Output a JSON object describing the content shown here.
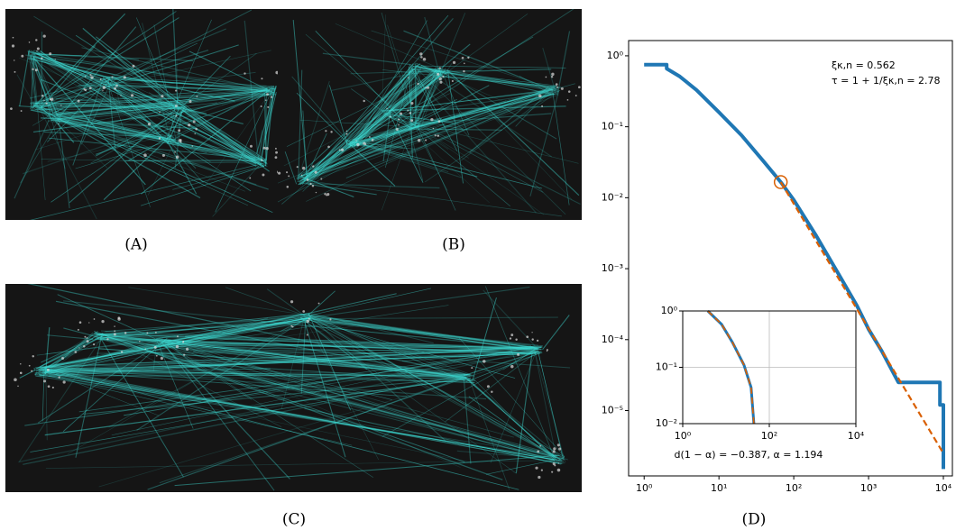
{
  "panel_labels": [
    "(A)",
    "(B)",
    "(C)",
    "(D)"
  ],
  "chart_data": {
    "type": "line",
    "xscale": "log",
    "yscale": "log",
    "xlim": [
      0.62,
      13200
    ],
    "ylim": [
      1.2e-06,
      1.64
    ],
    "xticks": [
      {
        "value": 1,
        "label": "10⁰"
      },
      {
        "value": 10,
        "label": "10¹"
      },
      {
        "value": 100,
        "label": "10²"
      },
      {
        "value": 1000,
        "label": "10³"
      },
      {
        "value": 10000,
        "label": "10⁴"
      }
    ],
    "yticks": [
      {
        "value": 1,
        "label": "10⁰"
      },
      {
        "value": 0.1,
        "label": "10⁻¹"
      },
      {
        "value": 0.01,
        "label": "10⁻²"
      },
      {
        "value": 0.001,
        "label": "10⁻³"
      },
      {
        "value": 0.0001,
        "label": "10⁻⁴"
      },
      {
        "value": 1e-05,
        "label": "10⁻⁵"
      }
    ],
    "annotations": [
      "ξκ,n = 0.562",
      "τ = 1 + 1/ξκ,n = 2.78"
    ],
    "series": [
      {
        "color": "#1f77b4",
        "style": "solid",
        "x": [
          1,
          2,
          2,
          3,
          5,
          10,
          20,
          40,
          67,
          100,
          200,
          400,
          700,
          1000,
          1500,
          2500,
          9000,
          9000,
          10000,
          10000
        ],
        "values": [
          0.75,
          0.75,
          0.66,
          0.51,
          0.33,
          0.16,
          0.076,
          0.032,
          0.0166,
          0.0093,
          0.0029,
          0.00083,
          0.0003,
          0.00014,
          6.9e-05,
          2.5e-05,
          2.5e-05,
          1.2e-05,
          1.2e-05,
          1.5e-06
        ]
      },
      {
        "color": "#d95f02",
        "style": "dashed",
        "x": [
          67,
          10000
        ],
        "values": [
          0.0166,
          2.5e-06
        ]
      }
    ],
    "threshold": {
      "x": 67,
      "y": 0.0166,
      "color": "#d95f02"
    },
    "inset": {
      "type": "line",
      "xscale": "log",
      "yscale": "log",
      "xlim": [
        1,
        10000
      ],
      "ylim": [
        0.01,
        1
      ],
      "xticks": [
        {
          "value": 1,
          "label": "10⁰"
        },
        {
          "value": 100,
          "label": "10²"
        },
        {
          "value": 10000,
          "label": "10⁴"
        }
      ],
      "yticks": [
        {
          "value": 1,
          "label": "10⁰"
        },
        {
          "value": 0.1,
          "label": "10⁻¹"
        },
        {
          "value": 0.01,
          "label": "10⁻²"
        }
      ],
      "grid": true,
      "annotation": "d(1 − α) = −0.387,   α = 1.194",
      "series": [
        {
          "color": "#1f77b4",
          "style": "solid",
          "x": [
            3.8,
            7.9,
            14,
            26,
            38,
            44
          ],
          "values": [
            1,
            0.58,
            0.28,
            0.11,
            0.044,
            0.01
          ]
        },
        {
          "color": "#d95f02",
          "style": "dashed",
          "x": [
            3.8,
            7.9,
            14,
            26,
            38,
            44
          ],
          "values": [
            1,
            0.58,
            0.28,
            0.11,
            0.044,
            0.01
          ]
        }
      ]
    }
  }
}
